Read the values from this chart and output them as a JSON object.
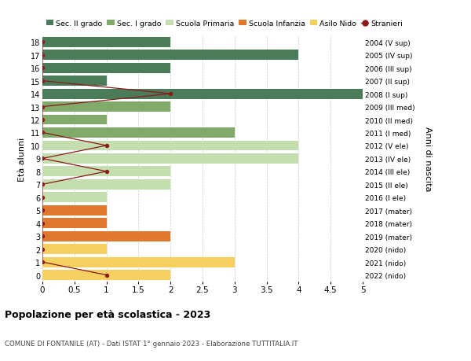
{
  "ages": [
    18,
    17,
    16,
    15,
    14,
    13,
    12,
    11,
    10,
    9,
    8,
    7,
    6,
    5,
    4,
    3,
    2,
    1,
    0
  ],
  "right_labels": [
    "2004 (V sup)",
    "2005 (IV sup)",
    "2006 (III sup)",
    "2007 (II sup)",
    "2008 (I sup)",
    "2009 (III med)",
    "2010 (II med)",
    "2011 (I med)",
    "2012 (V ele)",
    "2013 (IV ele)",
    "2014 (III ele)",
    "2015 (II ele)",
    "2016 (I ele)",
    "2017 (mater)",
    "2018 (mater)",
    "2019 (mater)",
    "2020 (nido)",
    "2021 (nido)",
    "2022 (nido)"
  ],
  "bar_values": [
    2,
    4,
    2,
    1,
    5,
    2,
    1,
    3,
    4,
    4,
    2,
    2,
    1,
    1,
    1,
    2,
    1,
    3,
    2
  ],
  "bar_colors": [
    "#4a7c59",
    "#4a7c59",
    "#4a7c59",
    "#4a7c59",
    "#4a7c59",
    "#7faa6a",
    "#7faa6a",
    "#7faa6a",
    "#c5deb0",
    "#c5deb0",
    "#c5deb0",
    "#c5deb0",
    "#c5deb0",
    "#e07830",
    "#e07830",
    "#e07830",
    "#f5d060",
    "#f5d060",
    "#f5d060"
  ],
  "stranieri_x": [
    0,
    0,
    0,
    0,
    2,
    0,
    0,
    0,
    1,
    0,
    1,
    0,
    0,
    0,
    0,
    0,
    0,
    0,
    1
  ],
  "stranieri_color": "#8b1a1a",
  "legend_labels": [
    "Sec. II grado",
    "Sec. I grado",
    "Scuola Primaria",
    "Scuola Infanzia",
    "Asilo Nido",
    "Stranieri"
  ],
  "legend_colors": [
    "#4a7c59",
    "#7faa6a",
    "#c5deb0",
    "#e07830",
    "#f5d060",
    "#8b1a1a"
  ],
  "xlabel_ticks": [
    0,
    0.5,
    1.0,
    1.5,
    2.0,
    2.5,
    3.0,
    3.5,
    4.0,
    4.5,
    5.0
  ],
  "xlim": [
    0,
    5.0
  ],
  "ylim": [
    -0.5,
    18.5
  ],
  "ylabel_left": "Età alunni",
  "ylabel_right": "Anni di nascita",
  "title": "Popolazione per età scolastica - 2023",
  "subtitle": "COMUNE DI FONTANILE (AT) - Dati ISTAT 1° gennaio 2023 - Elaborazione TUTTITALIA.IT",
  "bg_color": "#ffffff",
  "grid_color": "#cccccc"
}
